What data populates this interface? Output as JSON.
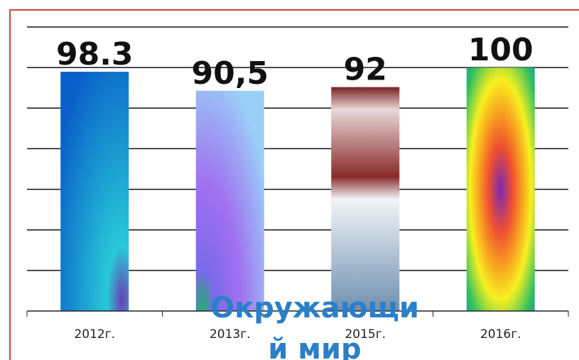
{
  "chart_data": {
    "type": "bar",
    "categories": [
      "2012г.",
      "2013г.",
      "2015г.",
      "2016г."
    ],
    "values": [
      98.3,
      90.5,
      92,
      100
    ],
    "value_labels": [
      "98.3",
      "90,5",
      "92",
      "100"
    ],
    "ylim": [
      0,
      116.7
    ],
    "annotation": [
      "Окружающи",
      "й мир"
    ]
  }
}
